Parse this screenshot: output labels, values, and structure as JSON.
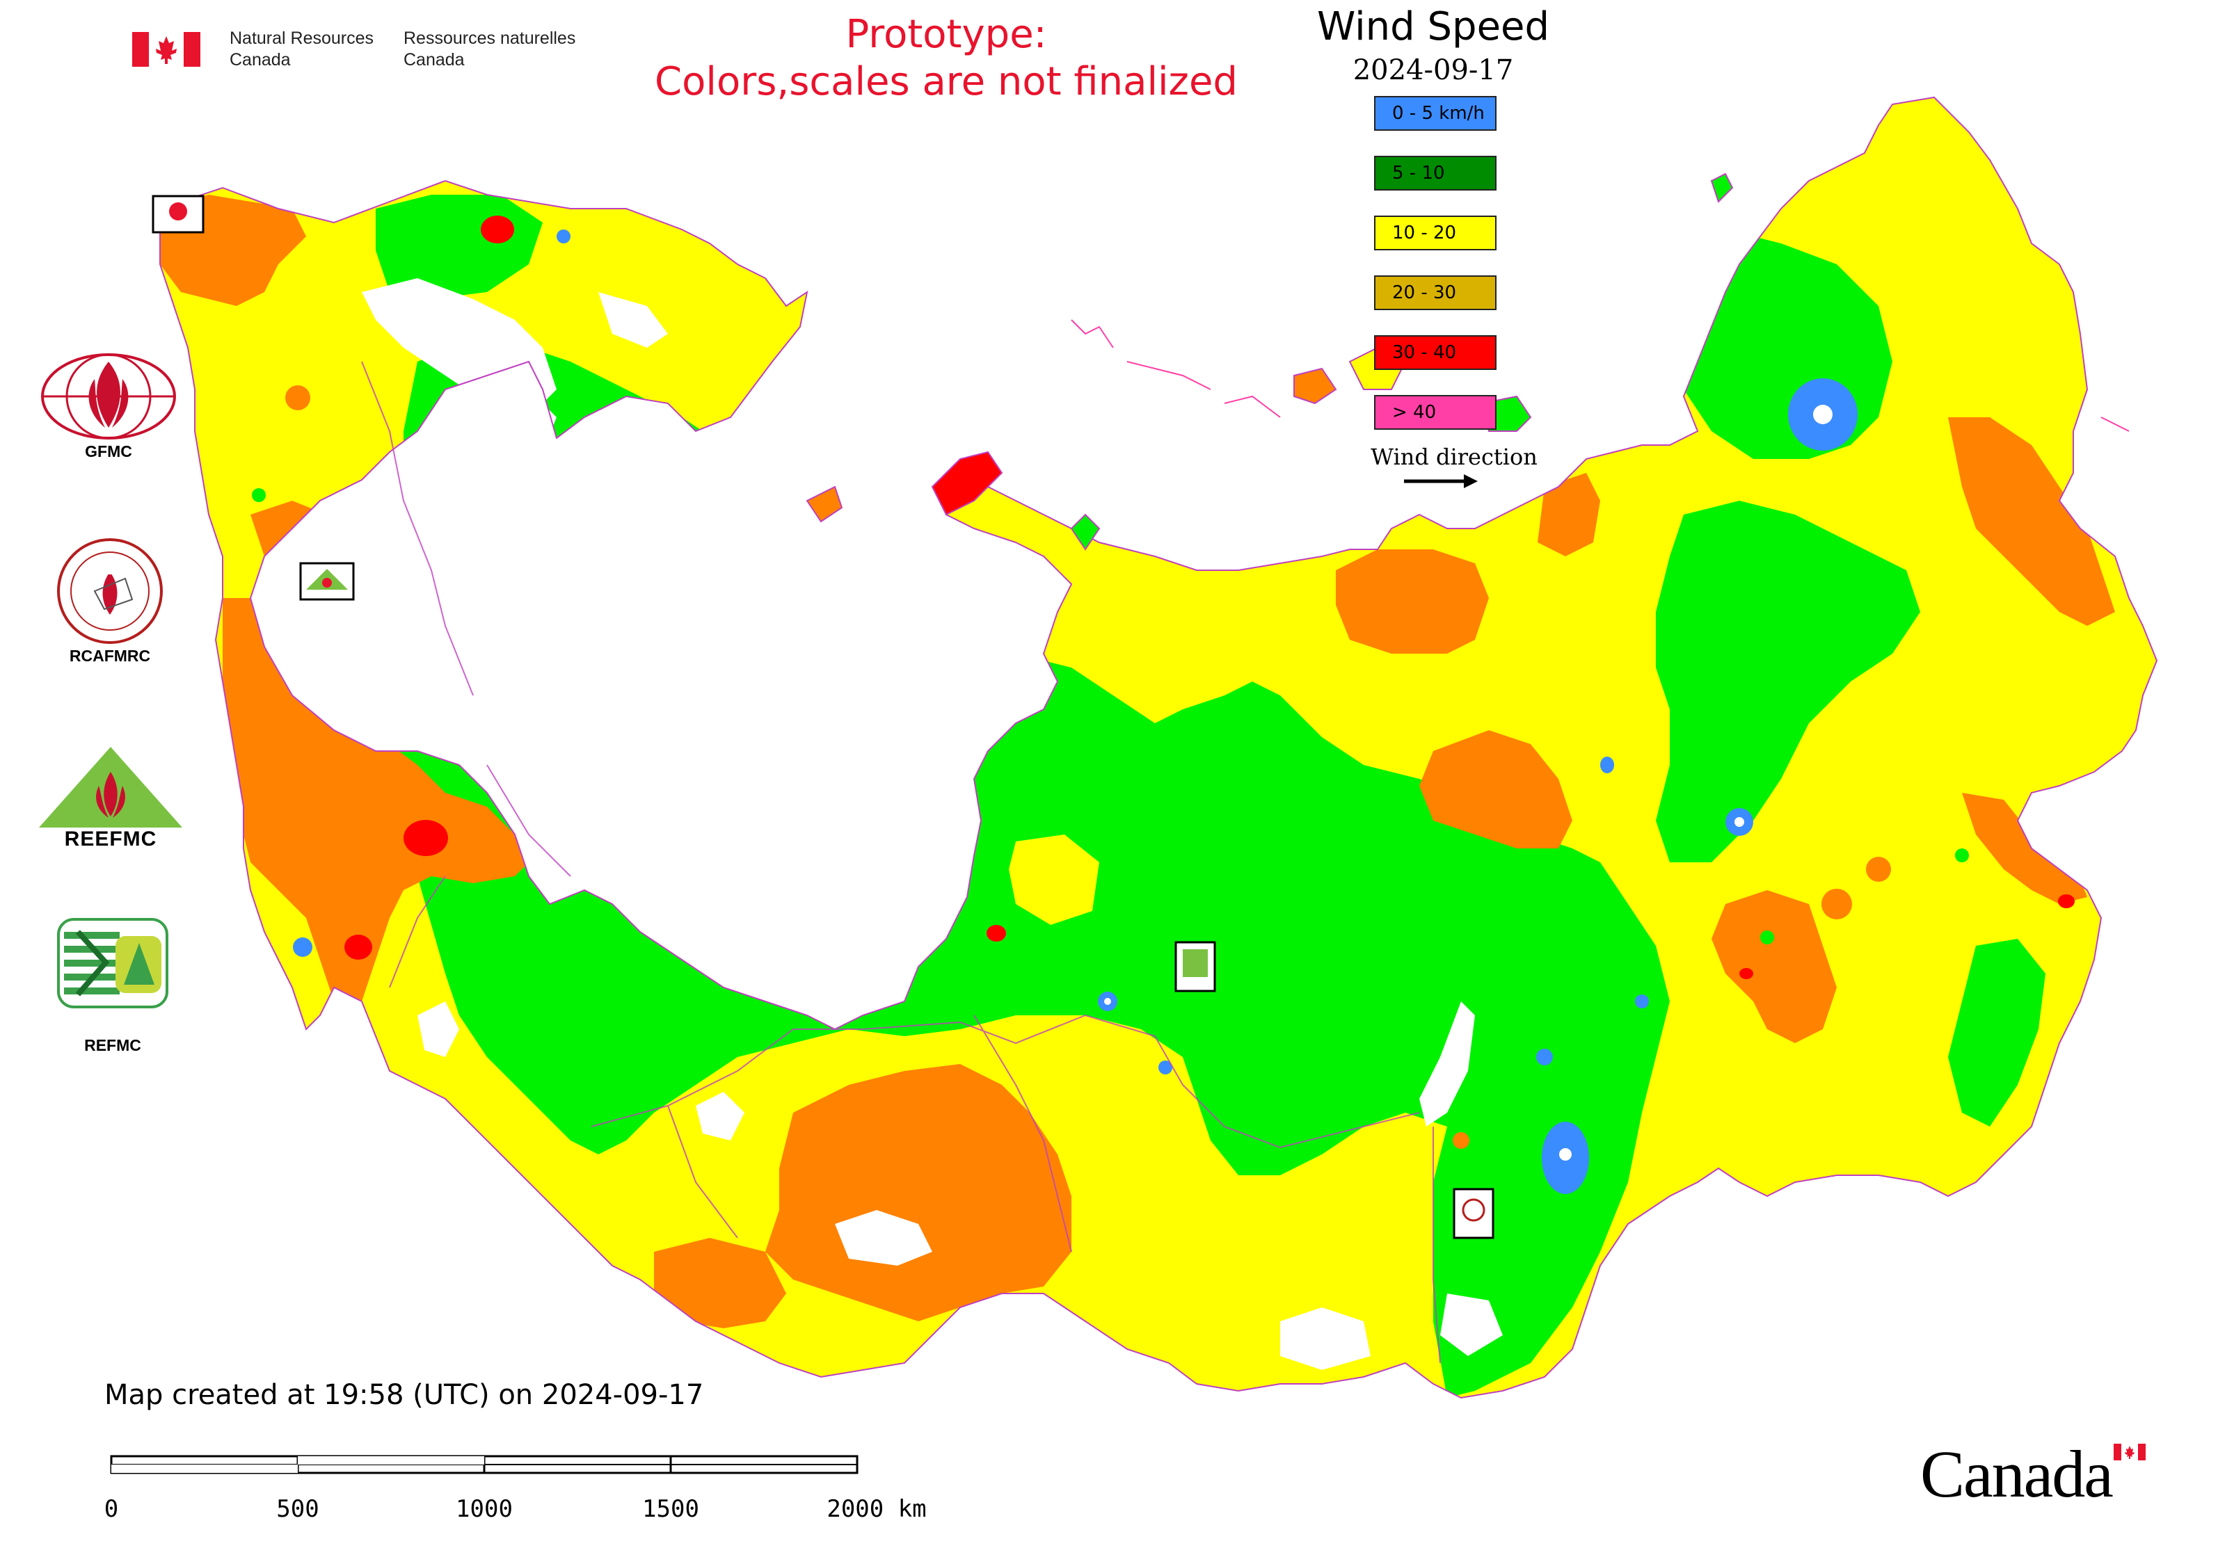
{
  "header": {
    "nrcan_en": "Natural Resources\nCanada",
    "nrcan_fr": "Ressources naturelles\nCanada",
    "prototype_line1": "Prototype:",
    "prototype_line2": "Colors,scales are not finalized"
  },
  "legend": {
    "title": "Wind Speed",
    "date": "2024-09-17",
    "items": [
      {
        "label": "0 - 5 km/h",
        "color": "#3b8cff"
      },
      {
        "label": "5 - 10",
        "color": "#008c00"
      },
      {
        "label": "10 - 20",
        "color": "#ffff00"
      },
      {
        "label": "20 - 30",
        "color": "#d9b200"
      },
      {
        "label": "30 - 40",
        "color": "#ff0000"
      },
      {
        "label": "> 40",
        "color": "#ff3fa6"
      }
    ],
    "wind_direction_label": "Wind direction"
  },
  "agencies": [
    "GFMC",
    "RCAFMRC",
    "REEFMC",
    "REFMC"
  ],
  "footer": {
    "created": "Map created at 19:58 (UTC) on 2024-09-17",
    "scale_ticks": [
      "0",
      "500",
      "1000",
      "1500",
      "2000 km"
    ],
    "canada_wordmark": "Canada"
  },
  "map_colors": {
    "calm": "#3b8cff",
    "light": "#00f200",
    "moderate": "#ffff00",
    "fresh": "#ff8200",
    "strong": "#ff0000",
    "water": "#ffffff",
    "border": "#c040c0"
  }
}
